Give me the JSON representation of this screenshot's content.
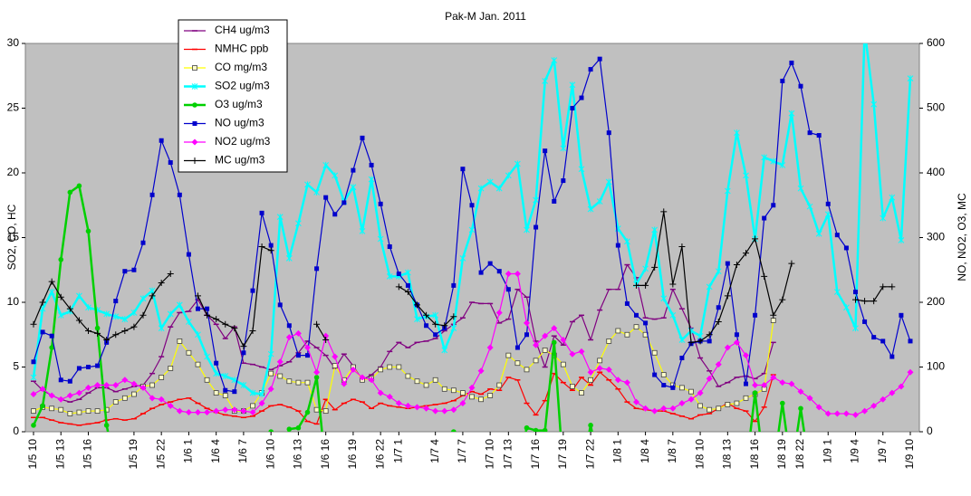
{
  "chart_data": {
    "type": "line",
    "title": "Pak-M Jan. 2011",
    "y_label": "SO2, CO, HC",
    "y2_label": "NO, NO2, O3, MC",
    "legend": "upper left",
    "plot_background": "#c0c0c0",
    "categories": [
      "1/5 10",
      null,
      null,
      "1/5 13",
      null,
      null,
      "1/5 16",
      null,
      null,
      null,
      null,
      "1/5 19",
      null,
      null,
      "1/5 22",
      null,
      null,
      "1/6 1",
      null,
      null,
      "1/6 4",
      null,
      null,
      "1/6 7",
      null,
      null,
      "1/6 10",
      null,
      null,
      "1/6 13",
      null,
      null,
      "1/6 16",
      null,
      null,
      "1/6 19",
      null,
      null,
      "1/6 22",
      null,
      "1/7 1",
      null,
      null,
      null,
      "1/7 4",
      null,
      null,
      "1/7 7",
      null,
      null,
      "1/7 10",
      null,
      "1/7 13",
      null,
      null,
      "1/7 16",
      null,
      null,
      "1/7 19",
      null,
      null,
      "1/7 22",
      null,
      null,
      "1/8 1",
      null,
      null,
      "1/8 4",
      null,
      null,
      "1/8 7",
      null,
      null,
      "1/8 10",
      null,
      null,
      "1/8 13",
      null,
      null,
      "1/8 16",
      null,
      null,
      "1/8 19",
      null,
      "1/8 22",
      null,
      null,
      "1/9 1",
      null,
      null,
      "1/9 4",
      null,
      null,
      "1/9 7",
      null,
      null,
      "1/9 10"
    ],
    "ylim": [
      0,
      30
    ],
    "yticks": [
      0,
      5,
      10,
      15,
      20,
      25,
      30
    ],
    "y2lim": [
      0,
      600
    ],
    "y2ticks": [
      0,
      100,
      200,
      300,
      400,
      500,
      600
    ],
    "series": [
      {
        "name": "CH4 ug/m3",
        "color": "#800080",
        "marker": "dash",
        "values": [
          3.9,
          3.2,
          2.8,
          2.5,
          2.3,
          2.5,
          3.0,
          3.4,
          3.4,
          3.1,
          3.3,
          3.5,
          3.6,
          4.5,
          5.8,
          8.1,
          9.2,
          9.3,
          10.2,
          9.0,
          8.3,
          7.2,
          8.1,
          5.3,
          5.2,
          5.0,
          4.8,
          5.1,
          5.4,
          6.1,
          7.0,
          6.5,
          5.9,
          4.9,
          6.0,
          5.1,
          4.0,
          4.4,
          5.0,
          6.2,
          6.9,
          6.5,
          6.9,
          7.0,
          7.2,
          7.8,
          8.3,
          8.8,
          10.0,
          9.9,
          9.9,
          8.4,
          8.7,
          11.0,
          10.4,
          7.0,
          5.0,
          7.4,
          6.7,
          8.5,
          9.0,
          7.1,
          9.4,
          11.0,
          11.0,
          12.9,
          11.9,
          8.8,
          8.7,
          8.8,
          11.0,
          9.5,
          8.0,
          5.7,
          4.7,
          3.5,
          3.8,
          4.2,
          4.3,
          4.1,
          4.5,
          6.9,
          null,
          null,
          null,
          null,
          null,
          null,
          null,
          null,
          null,
          null,
          null,
          null,
          null,
          null,
          null
        ]
      },
      {
        "name": "NMHC ppb",
        "color": "#ff0000",
        "marker": "dash",
        "values": [
          1.1,
          1.1,
          0.9,
          0.7,
          0.6,
          0.5,
          0.6,
          0.7,
          0.9,
          1.0,
          0.9,
          1.0,
          1.4,
          1.8,
          2.1,
          2.3,
          2.5,
          2.6,
          2.2,
          1.8,
          1.5,
          1.3,
          1.2,
          1.1,
          1.2,
          1.6,
          2.0,
          2.1,
          1.9,
          1.6,
          0.8,
          0.6,
          2.5,
          1.7,
          2.2,
          2.5,
          2.3,
          1.8,
          2.2,
          2.0,
          1.9,
          1.8,
          1.9,
          2.0,
          2.1,
          2.2,
          2.4,
          2.8,
          3.1,
          2.9,
          3.3,
          3.2,
          4.2,
          4.0,
          2.2,
          1.3,
          2.4,
          4.5,
          3.8,
          3.2,
          4.2,
          3.6,
          4.6,
          4.0,
          3.3,
          2.3,
          1.8,
          1.7,
          1.6,
          1.6,
          1.4,
          1.2,
          1.0,
          1.3,
          1.4,
          1.8,
          2.2,
          1.8,
          1.6,
          0.8,
          1.9,
          4.4,
          null,
          null,
          null,
          null,
          null,
          null,
          null,
          null,
          null,
          null,
          null,
          null,
          null,
          null,
          null
        ]
      },
      {
        "name": "CO mg/m3",
        "color": "#ffff00",
        "marker": "square-open",
        "values": [
          1.6,
          1.9,
          1.8,
          1.7,
          1.4,
          1.5,
          1.6,
          1.6,
          1.7,
          2.3,
          2.6,
          2.9,
          3.5,
          3.6,
          4.2,
          4.9,
          7.0,
          6.1,
          5.2,
          4.0,
          3.0,
          2.8,
          1.6,
          1.6,
          2.0,
          3.0,
          4.5,
          4.3,
          3.9,
          3.8,
          3.8,
          1.7,
          1.6,
          5.1,
          4.0,
          5.0,
          4.0,
          4.1,
          4.8,
          5.0,
          5.0,
          4.3,
          3.9,
          3.6,
          4.0,
          3.3,
          3.2,
          3.0,
          2.7,
          2.5,
          2.8,
          3.6,
          5.9,
          5.3,
          4.8,
          5.5,
          6.3,
          5.9,
          5.2,
          3.5,
          3.0,
          4.0,
          5.5,
          7.0,
          7.8,
          7.5,
          8.1,
          7.5,
          6.1,
          4.4,
          3.6,
          3.4,
          3.1,
          2.0,
          1.7,
          1.8,
          2.1,
          2.2,
          2.6,
          2.9,
          3.3,
          8.6,
          null,
          null,
          null,
          null,
          null,
          null,
          null,
          null,
          null,
          null,
          null,
          null,
          null,
          null,
          null
        ]
      },
      {
        "name": "SO2 ug/m3",
        "color": "#00ffff",
        "marker": "asterisk",
        "values": [
          4.2,
          9.5,
          10.8,
          9.0,
          9.3,
          10.5,
          9.6,
          9.4,
          9.1,
          8.9,
          8.7,
          9.2,
          10.3,
          10.9,
          8.0,
          9.1,
          9.8,
          8.5,
          7.5,
          5.8,
          4.5,
          4.3,
          4.0,
          3.6,
          3.0,
          2.9,
          6.0,
          16.6,
          13.4,
          16.1,
          19.1,
          18.5,
          20.6,
          19.8,
          17.8,
          18.9,
          15.5,
          19.5,
          14.9,
          12.0,
          12.0,
          12.3,
          8.7,
          8.9,
          9.0,
          6.3,
          8.0,
          13.4,
          15.6,
          18.8,
          19.3,
          18.8,
          19.8,
          20.7,
          15.6,
          17.9,
          27.1,
          28.7,
          21.9,
          26.8,
          20.3,
          17.2,
          17.8,
          19.3,
          15.7,
          14.7,
          11.4,
          12.6,
          15.6,
          10.3,
          9.0,
          7.1,
          7.8,
          7.4,
          11.2,
          12.4,
          18.6,
          23.1,
          19.8,
          14.9,
          21.2,
          20.9,
          20.6,
          24.6,
          18.8,
          17.4,
          15.3,
          16.8,
          10.8,
          9.6,
          8.0,
          31,
          25.3,
          16.5,
          18.1,
          14.8,
          27.3
        ]
      },
      {
        "name": "O3 ug/m3",
        "color": "#00d000",
        "marker": "circle",
        "axis": "y2",
        "values": [
          10,
          40,
          130,
          266,
          370,
          380,
          310,
          160,
          10,
          -60,
          null,
          null,
          null,
          null,
          null,
          null,
          null,
          null,
          null,
          null,
          null,
          null,
          null,
          null,
          null,
          -60,
          0,
          -60,
          4,
          6,
          30,
          84,
          -60,
          null,
          null,
          null,
          null,
          null,
          null,
          null,
          null,
          null,
          null,
          null,
          null,
          -60,
          0,
          -60,
          null,
          null,
          null,
          null,
          null,
          -60,
          6,
          2,
          2,
          138,
          -60,
          null,
          -60,
          10,
          -60,
          null,
          null,
          null,
          null,
          null,
          null,
          null,
          null,
          null,
          null,
          null,
          null,
          null,
          null,
          null,
          -60,
          60,
          -60,
          -60,
          44,
          -60,
          36,
          -60,
          null,
          null,
          null,
          null,
          null,
          null,
          null,
          null,
          null,
          null,
          null
        ]
      },
      {
        "name": "NO ug/m3",
        "color": "#0000cc",
        "marker": "square",
        "axis": "y2",
        "values": [
          108,
          154,
          148,
          80,
          78,
          98,
          100,
          102,
          138,
          202,
          248,
          250,
          292,
          366,
          450,
          416,
          366,
          274,
          190,
          190,
          106,
          64,
          62,
          122,
          218,
          338,
          288,
          196,
          164,
          118,
          118,
          252,
          362,
          336,
          354,
          404,
          454,
          412,
          352,
          286,
          244,
          226,
          196,
          164,
          150,
          160,
          226,
          406,
          350,
          246,
          260,
          248,
          220,
          130,
          150,
          316,
          434,
          356,
          388,
          500,
          516,
          560,
          576,
          462,
          288,
          198,
          180,
          168,
          88,
          72,
          68,
          114,
          136,
          140,
          140,
          192,
          260,
          150,
          74,
          180,
          330,
          350,
          542,
          570,
          534,
          462,
          458,
          352,
          304,
          284,
          216,
          170,
          146,
          140,
          116,
          180,
          140
        ]
      },
      {
        "name": "NO2 ug/m3",
        "color": "#ff00ff",
        "marker": "diamond",
        "axis": "y2",
        "values": [
          58,
          66,
          56,
          50,
          56,
          60,
          68,
          72,
          72,
          72,
          80,
          74,
          68,
          52,
          50,
          40,
          32,
          30,
          30,
          30,
          32,
          34,
          34,
          32,
          30,
          44,
          66,
          108,
          146,
          152,
          130,
          92,
          148,
          116,
          74,
          96,
          84,
          80,
          60,
          54,
          44,
          40,
          38,
          36,
          32,
          32,
          34,
          44,
          68,
          94,
          130,
          184,
          244,
          244,
          168,
          134,
          148,
          160,
          142,
          120,
          124,
          92,
          98,
          96,
          80,
          76,
          46,
          36,
          32,
          36,
          36,
          44,
          50,
          60,
          82,
          104,
          130,
          138,
          118,
          72,
          72,
          84,
          76,
          74,
          62,
          52,
          38,
          28,
          28,
          28,
          26,
          32,
          40,
          50,
          60,
          70,
          92
        ]
      },
      {
        "name": "MC ug/m3",
        "color": "#000000",
        "marker": "plus",
        "axis": "y2",
        "values": [
          166,
          200,
          232,
          208,
          190,
          172,
          156,
          152,
          142,
          150,
          156,
          162,
          180,
          210,
          230,
          244,
          null,
          null,
          210,
          180,
          174,
          166,
          160,
          132,
          156,
          286,
          280,
          null,
          null,
          null,
          null,
          166,
          142,
          null,
          null,
          null,
          null,
          null,
          null,
          null,
          224,
          216,
          196,
          180,
          166,
          164,
          178,
          null,
          null,
          null,
          null,
          null,
          null,
          null,
          null,
          null,
          null,
          null,
          null,
          null,
          null,
          null,
          null,
          null,
          null,
          null,
          226,
          226,
          254,
          340,
          228,
          286,
          138,
          140,
          150,
          170,
          210,
          258,
          276,
          298,
          240,
          180,
          204,
          260,
          null,
          null,
          null,
          null,
          null,
          null,
          204,
          202,
          202,
          224,
          224,
          null,
          null
        ]
      }
    ]
  }
}
